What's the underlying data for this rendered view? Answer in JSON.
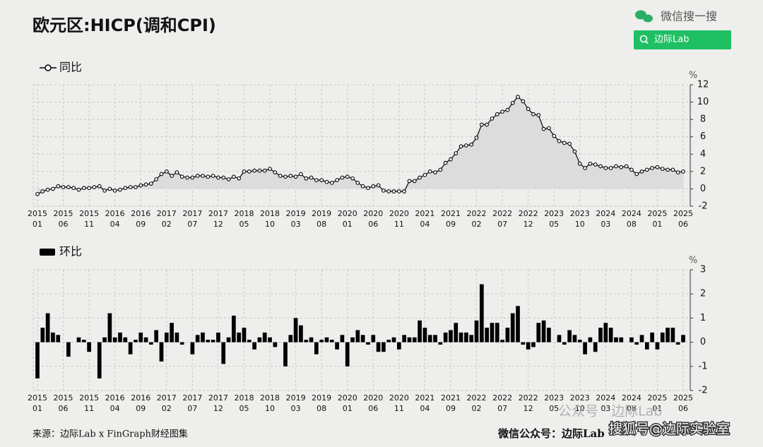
{
  "header": {
    "title": "欧元区:HICP(调和CPI)",
    "search_label": "微信搜一搜",
    "search_button": "边际Lab"
  },
  "chart_data": [
    {
      "type": "line",
      "unit": "%",
      "ylim": [
        -2,
        12
      ],
      "yticks": [
        -2,
        0,
        2,
        4,
        6,
        8,
        10,
        12
      ],
      "grid": true,
      "categories": [
        "2015\n01",
        null,
        null,
        null,
        null,
        "2015\n06",
        null,
        null,
        null,
        null,
        "2015\n11",
        null,
        null,
        null,
        null,
        "2016\n04",
        null,
        null,
        null,
        null,
        "2016\n09",
        null,
        null,
        null,
        null,
        "2017\n02",
        null,
        null,
        null,
        null,
        "2017\n07",
        null,
        null,
        null,
        null,
        "2017\n12",
        null,
        null,
        null,
        null,
        "2018\n05",
        null,
        null,
        null,
        null,
        "2018\n10",
        null,
        null,
        null,
        null,
        "2019\n03",
        null,
        null,
        null,
        null,
        "2019\n08",
        null,
        null,
        null,
        null,
        "2020\n01",
        null,
        null,
        null,
        null,
        "2020\n06",
        null,
        null,
        null,
        null,
        "2020\n11",
        null,
        null,
        null,
        null,
        "2021\n04",
        null,
        null,
        null,
        null,
        "2021\n09",
        null,
        null,
        null,
        null,
        "2022\n02",
        null,
        null,
        null,
        null,
        "2022\n07",
        null,
        null,
        null,
        null,
        "2022\n12",
        null,
        null,
        null,
        null,
        "2023\n05",
        null,
        null,
        null,
        null,
        "2023\n10",
        null,
        null,
        null,
        null,
        "2024\n03",
        null,
        null,
        null,
        null,
        "2024\n08",
        null,
        null,
        null,
        null,
        "2025\n01",
        null,
        null,
        null,
        null,
        "2025\n06"
      ],
      "series": [
        {
          "name": "同比",
          "color": "#000000",
          "fill_color": "#dcdcdc",
          "values": [
            -0.6,
            -0.3,
            -0.1,
            0.0,
            0.3,
            0.2,
            0.2,
            0.1,
            -0.1,
            0.1,
            0.1,
            0.2,
            0.3,
            -0.2,
            0.0,
            -0.2,
            -0.1,
            0.1,
            0.2,
            0.2,
            0.4,
            0.5,
            0.6,
            1.1,
            1.7,
            2.0,
            1.5,
            1.9,
            1.4,
            1.3,
            1.3,
            1.5,
            1.5,
            1.4,
            1.5,
            1.3,
            1.3,
            1.1,
            1.4,
            1.2,
            2.0,
            2.0,
            2.1,
            2.1,
            2.1,
            2.3,
            1.9,
            1.5,
            1.4,
            1.5,
            1.4,
            1.7,
            1.2,
            1.3,
            1.0,
            1.0,
            0.8,
            0.7,
            1.0,
            1.3,
            1.4,
            1.2,
            0.7,
            0.3,
            0.1,
            0.3,
            0.4,
            -0.2,
            -0.3,
            -0.3,
            -0.3,
            -0.3,
            0.9,
            0.9,
            1.3,
            1.6,
            2.0,
            1.9,
            2.2,
            3.0,
            3.4,
            4.1,
            4.9,
            5.0,
            5.1,
            5.9,
            7.4,
            7.4,
            8.1,
            8.6,
            8.9,
            9.1,
            9.9,
            10.6,
            10.1,
            9.2,
            8.6,
            8.5,
            6.9,
            7.0,
            6.1,
            5.5,
            5.3,
            5.2,
            4.3,
            2.9,
            2.4,
            2.9,
            2.8,
            2.6,
            2.4,
            2.4,
            2.6,
            2.5,
            2.6,
            2.2,
            1.7,
            2.0,
            2.2,
            2.4,
            2.5,
            2.3,
            2.2,
            2.2,
            1.9,
            2.0
          ]
        }
      ]
    },
    {
      "type": "bar",
      "unit": "%",
      "ylim": [
        -2,
        3
      ],
      "yticks": [
        -2,
        -1,
        0,
        1,
        2,
        3
      ],
      "grid": true,
      "categories": [
        "2015\n01",
        null,
        null,
        null,
        null,
        "2015\n06",
        null,
        null,
        null,
        null,
        "2015\n11",
        null,
        null,
        null,
        null,
        "2016\n04",
        null,
        null,
        null,
        null,
        "2016\n09",
        null,
        null,
        null,
        null,
        "2017\n02",
        null,
        null,
        null,
        null,
        "2017\n07",
        null,
        null,
        null,
        null,
        "2017\n12",
        null,
        null,
        null,
        null,
        "2018\n05",
        null,
        null,
        null,
        null,
        "2018\n10",
        null,
        null,
        null,
        null,
        "2019\n03",
        null,
        null,
        null,
        null,
        "2019\n08",
        null,
        null,
        null,
        null,
        "2020\n01",
        null,
        null,
        null,
        null,
        "2020\n06",
        null,
        null,
        null,
        null,
        "2020\n11",
        null,
        null,
        null,
        null,
        "2021\n04",
        null,
        null,
        null,
        null,
        "2021\n09",
        null,
        null,
        null,
        null,
        "2022\n02",
        null,
        null,
        null,
        null,
        "2022\n07",
        null,
        null,
        null,
        null,
        "2022\n12",
        null,
        null,
        null,
        null,
        "2023\n05",
        null,
        null,
        null,
        null,
        "2023\n10",
        null,
        null,
        null,
        null,
        "2024\n03",
        null,
        null,
        null,
        null,
        "2024\n08",
        null,
        null,
        null,
        null,
        "2025\n01",
        null,
        null,
        null,
        null,
        "2025\n06"
      ],
      "series": [
        {
          "name": "环比",
          "color": "#000000",
          "values": [
            -1.5,
            0.6,
            1.2,
            0.4,
            0.3,
            0.0,
            -0.6,
            0.0,
            0.2,
            0.1,
            -0.4,
            0.0,
            -1.5,
            0.2,
            1.2,
            0.2,
            0.4,
            0.2,
            -0.5,
            0.1,
            0.4,
            0.2,
            -0.1,
            0.5,
            -0.8,
            0.4,
            0.8,
            0.4,
            -0.1,
            0.0,
            -0.5,
            0.3,
            0.4,
            0.1,
            0.1,
            0.4,
            -0.9,
            0.2,
            1.1,
            0.4,
            0.6,
            0.1,
            -0.3,
            0.2,
            0.4,
            0.2,
            -0.2,
            0.0,
            -1.0,
            0.3,
            1.0,
            0.7,
            0.1,
            0.2,
            -0.5,
            0.1,
            0.2,
            0.1,
            -0.3,
            0.3,
            -1.0,
            0.2,
            0.5,
            0.3,
            -0.1,
            0.3,
            -0.4,
            -0.4,
            0.1,
            0.2,
            -0.3,
            0.3,
            0.2,
            0.2,
            0.9,
            0.6,
            0.3,
            0.3,
            -0.1,
            0.4,
            0.5,
            0.8,
            0.4,
            0.4,
            0.3,
            0.9,
            2.4,
            0.6,
            0.8,
            0.8,
            0.1,
            0.6,
            1.2,
            1.5,
            -0.1,
            -0.3,
            -0.2,
            0.8,
            0.9,
            0.6,
            0.0,
            0.3,
            -0.1,
            0.5,
            0.3,
            0.1,
            -0.5,
            0.2,
            -0.4,
            0.6,
            0.8,
            0.6,
            0.2,
            0.2,
            0.0,
            0.2,
            -0.1,
            0.3,
            -0.3,
            0.4,
            -0.3,
            0.4,
            0.6,
            0.6,
            -0.1,
            0.3
          ]
        }
      ]
    }
  ],
  "footer": {
    "source": "来源：边际Lab x FinGraph财经图集",
    "account": "微信公众号：边际Lab",
    "watermark": "公众号 · 边际Lab",
    "watermark2": "搜狐号@边际实验室"
  }
}
